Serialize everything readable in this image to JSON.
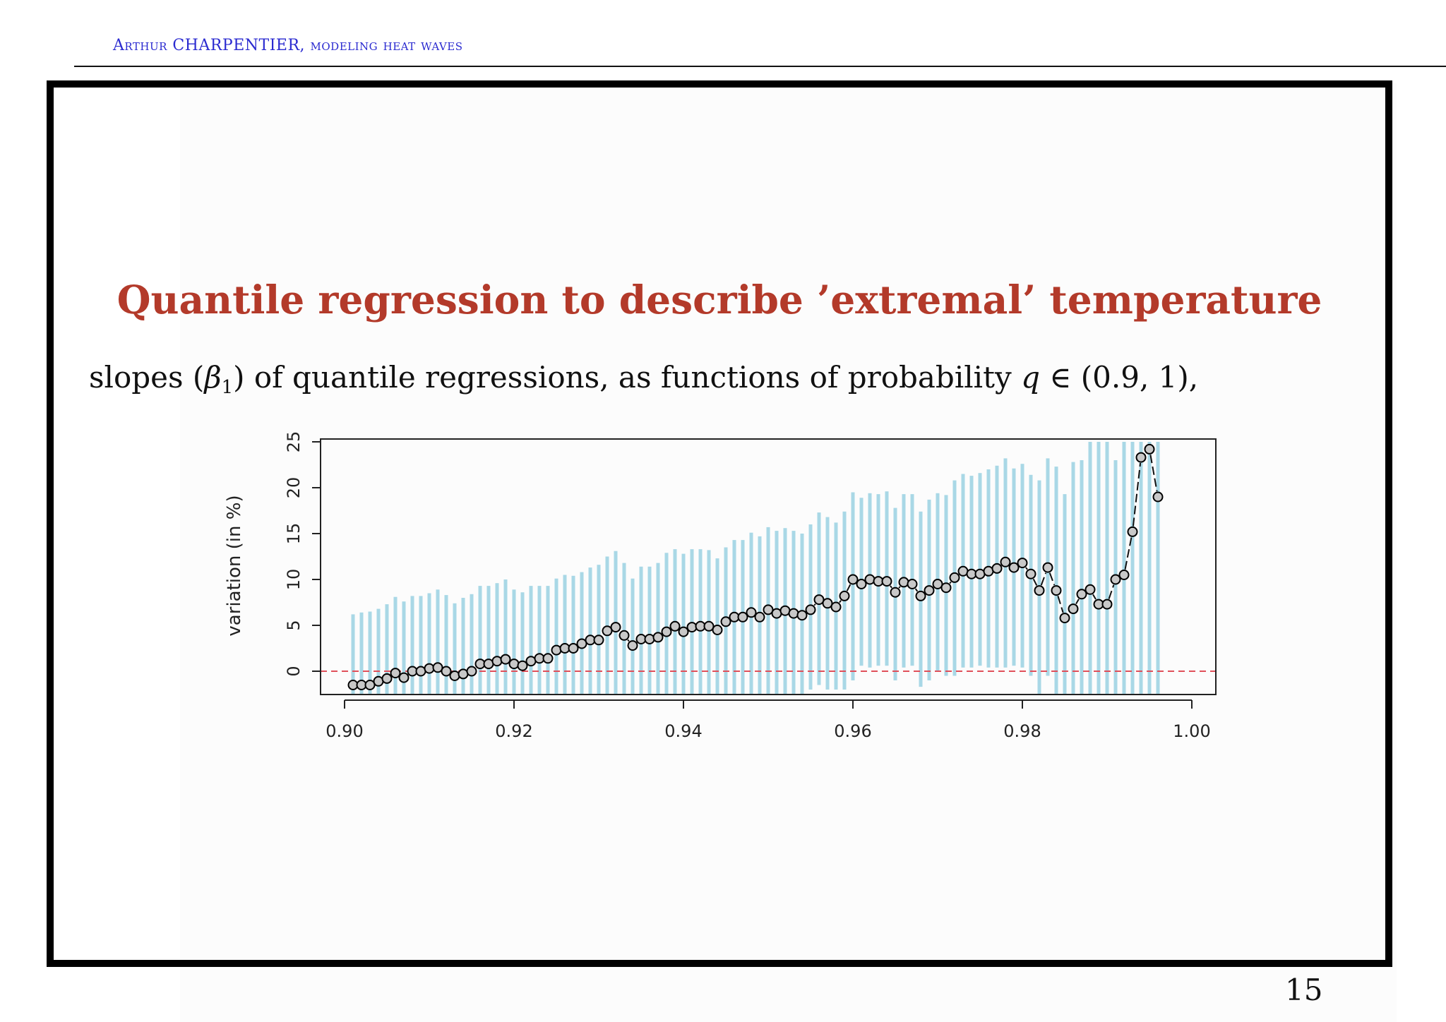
{
  "header": {
    "author": "Arthur CHARPENTIER",
    "separator": ", ",
    "topic": "modeling heat waves"
  },
  "slide": {
    "title": "Quantile regression to describe ’extremal’ temperature",
    "subtitle_parts": {
      "pre": "slopes (",
      "beta": "β",
      "beta_sub": "1",
      "mid": ") of quantile regressions, as functions of probability ",
      "q": "q",
      "post": " ∈ (0.9, 1),"
    },
    "page_number": "15"
  },
  "chart_data": {
    "type": "scatter",
    "title": "",
    "xlabel": "",
    "ylabel": "variation (in %)",
    "xlim": [
      0.9,
      1.0
    ],
    "ylim": [
      -2.5,
      25
    ],
    "x_ticks": [
      "0.90",
      "0.92",
      "0.94",
      "0.96",
      "0.98",
      "1.00"
    ],
    "y_ticks": [
      "0",
      "5",
      "10",
      "15",
      "20",
      "25"
    ],
    "reference_line": {
      "y": 0,
      "style": "dashed",
      "color": "#e0505a"
    },
    "colors": {
      "interval": "#a9d8e6",
      "point_fill": "#c8c8c8",
      "point_stroke": "#000000"
    },
    "series": [
      {
        "kind": "estimate",
        "x": [
          0.901,
          0.902,
          0.903,
          0.904,
          0.905,
          0.906,
          0.907,
          0.908,
          0.909,
          0.91,
          0.911,
          0.912,
          0.913,
          0.914,
          0.915,
          0.916,
          0.917,
          0.918,
          0.919,
          0.92,
          0.921,
          0.922,
          0.923,
          0.924,
          0.925,
          0.926,
          0.927,
          0.928,
          0.929,
          0.93,
          0.931,
          0.932,
          0.933,
          0.934,
          0.935,
          0.936,
          0.937,
          0.938,
          0.939,
          0.94,
          0.941,
          0.942,
          0.943,
          0.944,
          0.945,
          0.946,
          0.947,
          0.948,
          0.949,
          0.95,
          0.951,
          0.952,
          0.953,
          0.954,
          0.955,
          0.956,
          0.957,
          0.958,
          0.959,
          0.96,
          0.961,
          0.962,
          0.963,
          0.964,
          0.965,
          0.966,
          0.967,
          0.968,
          0.969,
          0.97,
          0.971,
          0.972,
          0.973,
          0.974,
          0.975,
          0.976,
          0.977,
          0.978,
          0.979,
          0.98,
          0.981,
          0.982,
          0.983,
          0.984,
          0.985,
          0.986,
          0.987,
          0.988,
          0.989,
          0.99,
          0.991,
          0.992,
          0.993,
          0.994,
          0.995,
          0.996
        ],
        "y": [
          -1.5,
          -1.5,
          -1.5,
          -1.1,
          -0.8,
          -0.2,
          -0.7,
          0.0,
          0.0,
          0.3,
          0.4,
          0.0,
          -0.5,
          -0.3,
          0.0,
          0.8,
          0.8,
          1.1,
          1.3,
          0.8,
          0.6,
          1.1,
          1.4,
          1.4,
          2.3,
          2.5,
          2.5,
          3.0,
          3.4,
          3.4,
          4.4,
          4.8,
          3.9,
          2.8,
          3.5,
          3.5,
          3.7,
          4.3,
          4.9,
          4.3,
          4.8,
          4.9,
          4.9,
          4.5,
          5.4,
          5.9,
          5.9,
          6.4,
          5.9,
          6.7,
          6.3,
          6.6,
          6.3,
          6.1,
          6.7,
          7.8,
          7.4,
          7.0,
          8.2,
          10.0,
          9.5,
          10.0,
          9.8,
          9.8,
          8.6,
          9.7,
          9.5,
          8.2,
          8.8,
          9.5,
          9.1,
          10.2,
          10.9,
          10.6,
          10.6,
          10.9,
          11.2,
          11.9,
          11.3,
          11.8,
          10.6,
          8.8,
          11.3,
          8.8,
          5.8,
          6.8,
          8.4,
          8.9,
          7.3,
          7.3,
          10.0,
          10.5,
          15.2,
          23.3,
          24.2,
          19.0
        ]
      },
      {
        "kind": "interval",
        "x": [
          0.901,
          0.902,
          0.903,
          0.904,
          0.905,
          0.906,
          0.907,
          0.908,
          0.909,
          0.91,
          0.911,
          0.912,
          0.913,
          0.914,
          0.915,
          0.916,
          0.917,
          0.918,
          0.919,
          0.92,
          0.921,
          0.922,
          0.923,
          0.924,
          0.925,
          0.926,
          0.927,
          0.928,
          0.929,
          0.93,
          0.931,
          0.932,
          0.933,
          0.934,
          0.935,
          0.936,
          0.937,
          0.938,
          0.939,
          0.94,
          0.941,
          0.942,
          0.943,
          0.944,
          0.945,
          0.946,
          0.947,
          0.948,
          0.949,
          0.95,
          0.951,
          0.952,
          0.953,
          0.954,
          0.955,
          0.956,
          0.957,
          0.958,
          0.959,
          0.96,
          0.961,
          0.962,
          0.963,
          0.964,
          0.965,
          0.966,
          0.967,
          0.968,
          0.969,
          0.97,
          0.971,
          0.972,
          0.973,
          0.974,
          0.975,
          0.976,
          0.977,
          0.978,
          0.979,
          0.98,
          0.981,
          0.982,
          0.983,
          0.984,
          0.985,
          0.986,
          0.987,
          0.988,
          0.989,
          0.99,
          0.991,
          0.992,
          0.993,
          0.994,
          0.995,
          0.996
        ],
        "low": [
          -2.5,
          -2.5,
          -2.5,
          -2.5,
          -2.5,
          -2.5,
          -2.5,
          -2.5,
          -2.5,
          -2.5,
          -2.5,
          -2.5,
          -2.5,
          -2.5,
          -2.5,
          -2.5,
          -2.5,
          -2.5,
          -2.5,
          -2.5,
          -2.5,
          -2.5,
          -2.5,
          -2.5,
          -2.5,
          -2.5,
          -2.5,
          -2.5,
          -2.5,
          -2.5,
          -2.5,
          -2.5,
          -2.5,
          -2.5,
          -2.5,
          -2.5,
          -2.5,
          -2.5,
          -2.5,
          -2.5,
          -2.5,
          -2.5,
          -2.5,
          -2.5,
          -2.5,
          -2.5,
          -2.5,
          -2.5,
          -2.5,
          -2.5,
          -2.5,
          -2.5,
          -2.5,
          -2.5,
          -2.0,
          -1.5,
          -2.0,
          -2.0,
          -2.0,
          -1.0,
          0.6,
          0.4,
          0.6,
          0.6,
          -1.0,
          0.4,
          0.6,
          -1.7,
          -1.0,
          0.0,
          -0.5,
          -0.5,
          0.4,
          0.4,
          0.6,
          0.4,
          0.4,
          0.4,
          0.6,
          0.4,
          -0.5,
          -2.5,
          -0.5,
          -2.5,
          -2.5,
          -2.5,
          -2.5,
          -2.5,
          -2.5,
          -2.5,
          -2.5,
          -2.5,
          -2.5,
          -2.5,
          -2.5,
          -2.5
        ],
        "high": [
          6.2,
          6.4,
          6.5,
          6.8,
          7.3,
          8.1,
          7.6,
          8.2,
          8.2,
          8.5,
          8.9,
          8.3,
          7.4,
          8.0,
          8.4,
          9.3,
          9.3,
          9.6,
          10.0,
          8.9,
          8.6,
          9.3,
          9.3,
          9.3,
          10.1,
          10.5,
          10.4,
          10.8,
          11.3,
          11.6,
          12.5,
          13.1,
          11.8,
          10.1,
          11.4,
          11.4,
          11.8,
          12.9,
          13.3,
          12.8,
          13.3,
          13.3,
          13.2,
          12.3,
          13.5,
          14.3,
          14.3,
          15.1,
          14.7,
          15.7,
          15.3,
          15.6,
          15.3,
          15.0,
          16.0,
          17.3,
          16.8,
          16.2,
          17.4,
          19.5,
          18.9,
          19.4,
          19.3,
          19.6,
          17.8,
          19.3,
          19.3,
          17.4,
          18.7,
          19.4,
          19.2,
          20.8,
          21.5,
          21.3,
          21.6,
          22.0,
          22.4,
          23.2,
          22.1,
          22.6,
          21.4,
          20.8,
          23.2,
          22.3,
          19.3,
          22.8,
          23.0,
          25.0,
          25.0,
          25.0,
          23.0,
          25.0,
          25.0,
          25.0,
          25.0,
          25.0
        ]
      }
    ],
    "legend": "none",
    "grid": false
  }
}
